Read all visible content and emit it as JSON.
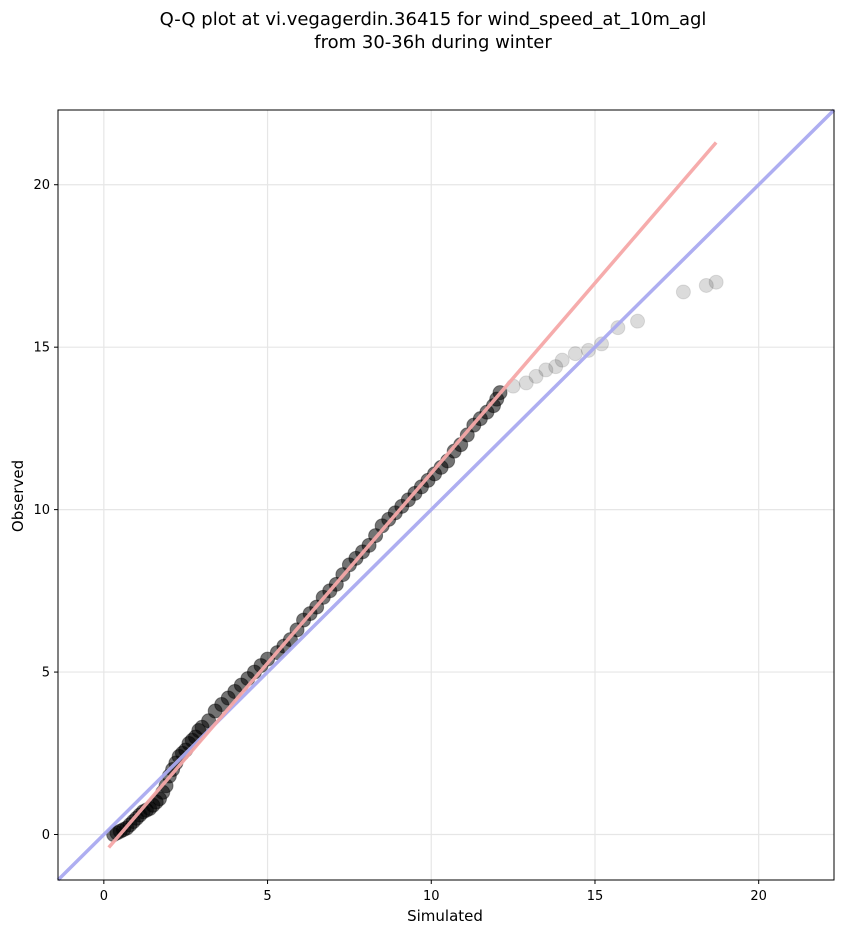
{
  "chart_data": {
    "type": "scatter",
    "title_lines": [
      "Q-Q plot at vi.vegagerdin.36415 for wind_speed_at_10m_agl",
      "from 30-36h during winter"
    ],
    "xlabel": "Simulated",
    "ylabel": "Observed",
    "xlim": [
      -1.4,
      22.3
    ],
    "ylim": [
      -1.4,
      22.3
    ],
    "xticks": [
      0,
      5,
      10,
      15,
      20
    ],
    "yticks": [
      0,
      5,
      10,
      15,
      20
    ],
    "xtick_labels": [
      "0",
      "5",
      "10",
      "15",
      "20"
    ],
    "ytick_labels": [
      "0",
      "5",
      "10",
      "15",
      "20"
    ],
    "grid": true,
    "reference_line": {
      "color": "#aaaaf0",
      "from": [
        -1.4,
        -1.4
      ],
      "to": [
        22.3,
        22.3
      ]
    },
    "fit_line": {
      "color": "#f6a8a8",
      "from": [
        0.15,
        -0.4
      ],
      "to": [
        18.7,
        21.3
      ]
    },
    "point_color": "#000000",
    "points": [
      [
        0.3,
        0.0
      ],
      [
        0.4,
        0.05
      ],
      [
        0.5,
        0.1
      ],
      [
        0.6,
        0.15
      ],
      [
        0.7,
        0.2
      ],
      [
        0.8,
        0.3
      ],
      [
        0.9,
        0.4
      ],
      [
        1.0,
        0.5
      ],
      [
        1.1,
        0.6
      ],
      [
        1.2,
        0.7
      ],
      [
        1.3,
        0.75
      ],
      [
        1.4,
        0.8
      ],
      [
        1.5,
        0.9
      ],
      [
        1.6,
        1.0
      ],
      [
        1.7,
        1.1
      ],
      [
        1.8,
        1.3
      ],
      [
        1.9,
        1.5
      ],
      [
        2.0,
        1.8
      ],
      [
        2.1,
        2.0
      ],
      [
        2.2,
        2.2
      ],
      [
        2.3,
        2.4
      ],
      [
        2.4,
        2.5
      ],
      [
        2.5,
        2.6
      ],
      [
        2.6,
        2.8
      ],
      [
        2.7,
        2.9
      ],
      [
        2.8,
        3.0
      ],
      [
        2.9,
        3.2
      ],
      [
        3.0,
        3.3
      ],
      [
        3.2,
        3.5
      ],
      [
        3.4,
        3.8
      ],
      [
        3.6,
        4.0
      ],
      [
        3.8,
        4.2
      ],
      [
        4.0,
        4.4
      ],
      [
        4.2,
        4.6
      ],
      [
        4.4,
        4.8
      ],
      [
        4.6,
        5.0
      ],
      [
        4.8,
        5.2
      ],
      [
        5.0,
        5.4
      ],
      [
        5.3,
        5.6
      ],
      [
        5.5,
        5.8
      ],
      [
        5.7,
        6.0
      ],
      [
        5.9,
        6.3
      ],
      [
        6.1,
        6.6
      ],
      [
        6.3,
        6.8
      ],
      [
        6.5,
        7.0
      ],
      [
        6.7,
        7.3
      ],
      [
        6.9,
        7.5
      ],
      [
        7.1,
        7.7
      ],
      [
        7.3,
        8.0
      ],
      [
        7.5,
        8.3
      ],
      [
        7.7,
        8.5
      ],
      [
        7.9,
        8.7
      ],
      [
        8.1,
        8.9
      ],
      [
        8.3,
        9.2
      ],
      [
        8.5,
        9.5
      ],
      [
        8.7,
        9.7
      ],
      [
        8.9,
        9.9
      ],
      [
        9.1,
        10.1
      ],
      [
        9.3,
        10.3
      ],
      [
        9.5,
        10.5
      ],
      [
        9.7,
        10.7
      ],
      [
        9.9,
        10.9
      ],
      [
        10.1,
        11.1
      ],
      [
        10.3,
        11.3
      ],
      [
        10.5,
        11.5
      ],
      [
        10.7,
        11.8
      ],
      [
        10.9,
        12.0
      ],
      [
        11.1,
        12.3
      ],
      [
        11.3,
        12.6
      ],
      [
        11.5,
        12.8
      ],
      [
        11.7,
        13.0
      ],
      [
        11.9,
        13.2
      ],
      [
        12.0,
        13.4
      ],
      [
        12.1,
        13.6
      ],
      [
        12.5,
        13.8
      ],
      [
        12.9,
        13.9
      ],
      [
        13.2,
        14.1
      ],
      [
        13.5,
        14.3
      ],
      [
        13.8,
        14.4
      ],
      [
        14.0,
        14.6
      ],
      [
        14.4,
        14.8
      ],
      [
        14.8,
        14.9
      ],
      [
        15.2,
        15.1
      ],
      [
        15.7,
        15.6
      ],
      [
        16.3,
        15.8
      ],
      [
        17.7,
        16.7
      ],
      [
        18.4,
        16.9
      ],
      [
        18.7,
        17.0
      ]
    ]
  }
}
